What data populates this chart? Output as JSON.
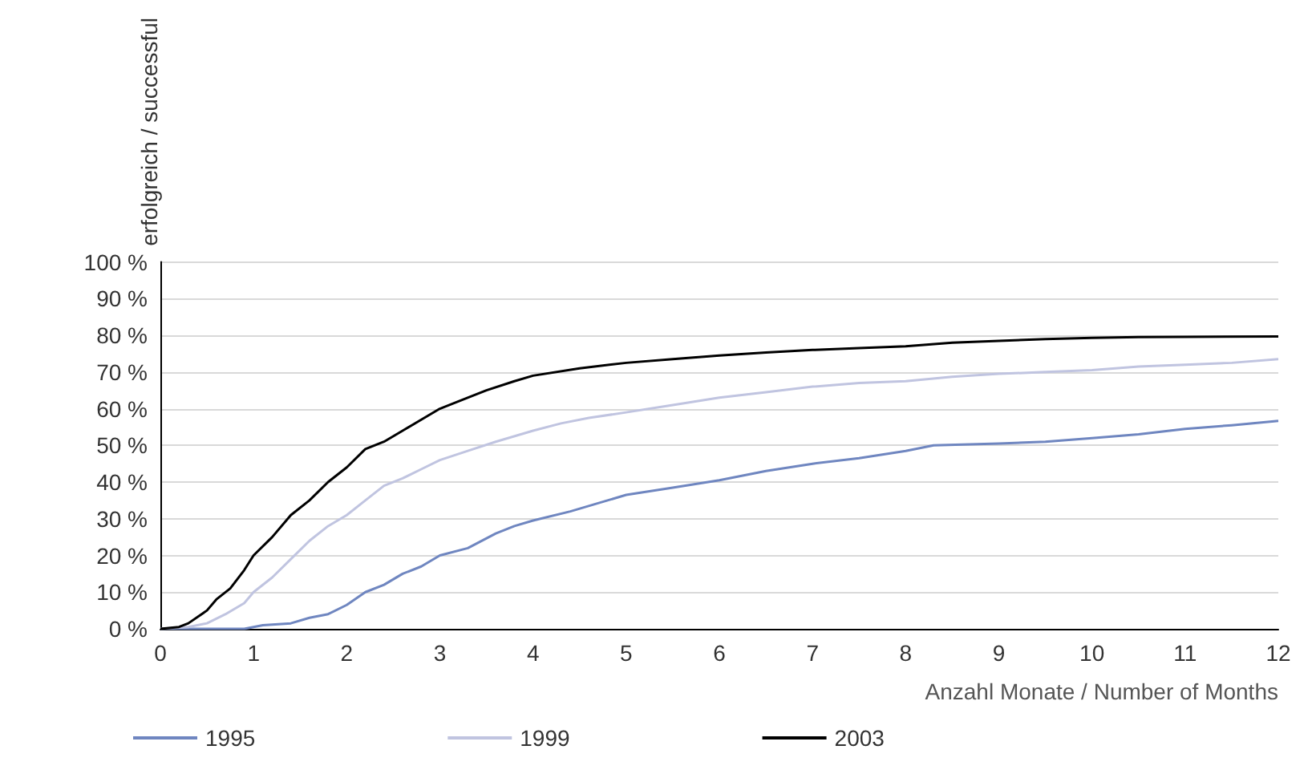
{
  "chart_data": {
    "type": "line",
    "xlabel": "Anzahl Monate / Number of Months",
    "ylabel": "erfolgreich / successful",
    "xlim": [
      0,
      12
    ],
    "xticks": [
      0,
      1,
      2,
      3,
      4,
      5,
      6,
      7,
      8,
      9,
      10,
      11,
      12
    ],
    "ylim": [
      0,
      100
    ],
    "yticks": [
      {
        "value": 0,
        "label": "0 %"
      },
      {
        "value": 10,
        "label": "10 %"
      },
      {
        "value": 20,
        "label": "20 %"
      },
      {
        "value": 30,
        "label": "30 %"
      },
      {
        "value": 40,
        "label": "40 %"
      },
      {
        "value": 50,
        "label": "50 %"
      },
      {
        "value": 60,
        "label": "60 %"
      },
      {
        "value": 70,
        "label": "70 %"
      },
      {
        "value": 80,
        "label": "80 %"
      },
      {
        "value": 90,
        "label": "90 %"
      },
      {
        "value": 100,
        "label": "100 %"
      }
    ],
    "grid": "y",
    "legend": "bottom",
    "marker": "none",
    "line_style": "solid",
    "series": [
      {
        "name": "1995",
        "color": "#6f86c0",
        "x": [
          0,
          0.9,
          1.1,
          1.4,
          1.6,
          1.8,
          2.0,
          2.2,
          2.4,
          2.6,
          2.8,
          3.0,
          3.3,
          3.6,
          3.8,
          4.0,
          4.4,
          4.8,
          5.0,
          5.5,
          6,
          6.5,
          7,
          7.5,
          8,
          8.3,
          9,
          9.5,
          10,
          10.5,
          11,
          11.5,
          12
        ],
        "values": [
          0,
          0,
          1,
          1.5,
          3,
          4,
          6.5,
          10,
          12,
          15,
          17,
          20,
          22,
          26,
          28,
          29.5,
          32,
          35,
          36.5,
          38.5,
          40.5,
          43,
          45,
          46.5,
          48.5,
          50,
          50.5,
          51,
          52,
          53,
          54.5,
          55.5,
          56.7
        ]
      },
      {
        "name": "1999",
        "color": "#c0c4e0",
        "x": [
          0,
          0.3,
          0.5,
          0.7,
          0.9,
          1.0,
          1.2,
          1.4,
          1.6,
          1.8,
          2.0,
          2.2,
          2.4,
          2.6,
          2.8,
          3.0,
          3.3,
          3.6,
          4.0,
          4.3,
          4.6,
          5,
          5.5,
          6,
          6.5,
          7,
          7.5,
          8,
          8.5,
          9,
          9.5,
          10,
          10.5,
          11,
          11.5,
          12
        ],
        "values": [
          0,
          0.5,
          1.5,
          4,
          7,
          10,
          14,
          19,
          24,
          28,
          31,
          35,
          39,
          41,
          43.5,
          46,
          48.5,
          51,
          54,
          56,
          57.5,
          59,
          61,
          63,
          64.5,
          66,
          67,
          67.5,
          68.7,
          69.5,
          70,
          70.5,
          71.5,
          72,
          72.5,
          73.5
        ]
      },
      {
        "name": "2003",
        "color": "#000000",
        "x": [
          0,
          0.2,
          0.3,
          0.5,
          0.6,
          0.75,
          0.9,
          1.0,
          1.2,
          1.4,
          1.6,
          1.8,
          2.0,
          2.2,
          2.4,
          2.6,
          2.8,
          3.0,
          3.2,
          3.5,
          3.8,
          4.0,
          4.5,
          5,
          5.5,
          6,
          6.5,
          7,
          7.5,
          8,
          8.5,
          9,
          9.5,
          10,
          10.5,
          11,
          12
        ],
        "values": [
          0,
          0.5,
          1.5,
          5,
          8,
          11,
          16,
          20,
          25,
          31,
          35,
          40,
          44,
          49,
          51,
          54,
          57,
          60,
          62,
          65,
          67.5,
          69,
          71,
          72.5,
          73.5,
          74.5,
          75.3,
          76,
          76.5,
          77,
          78,
          78.5,
          79,
          79.3,
          79.5,
          79.6,
          79.7
        ]
      }
    ]
  }
}
